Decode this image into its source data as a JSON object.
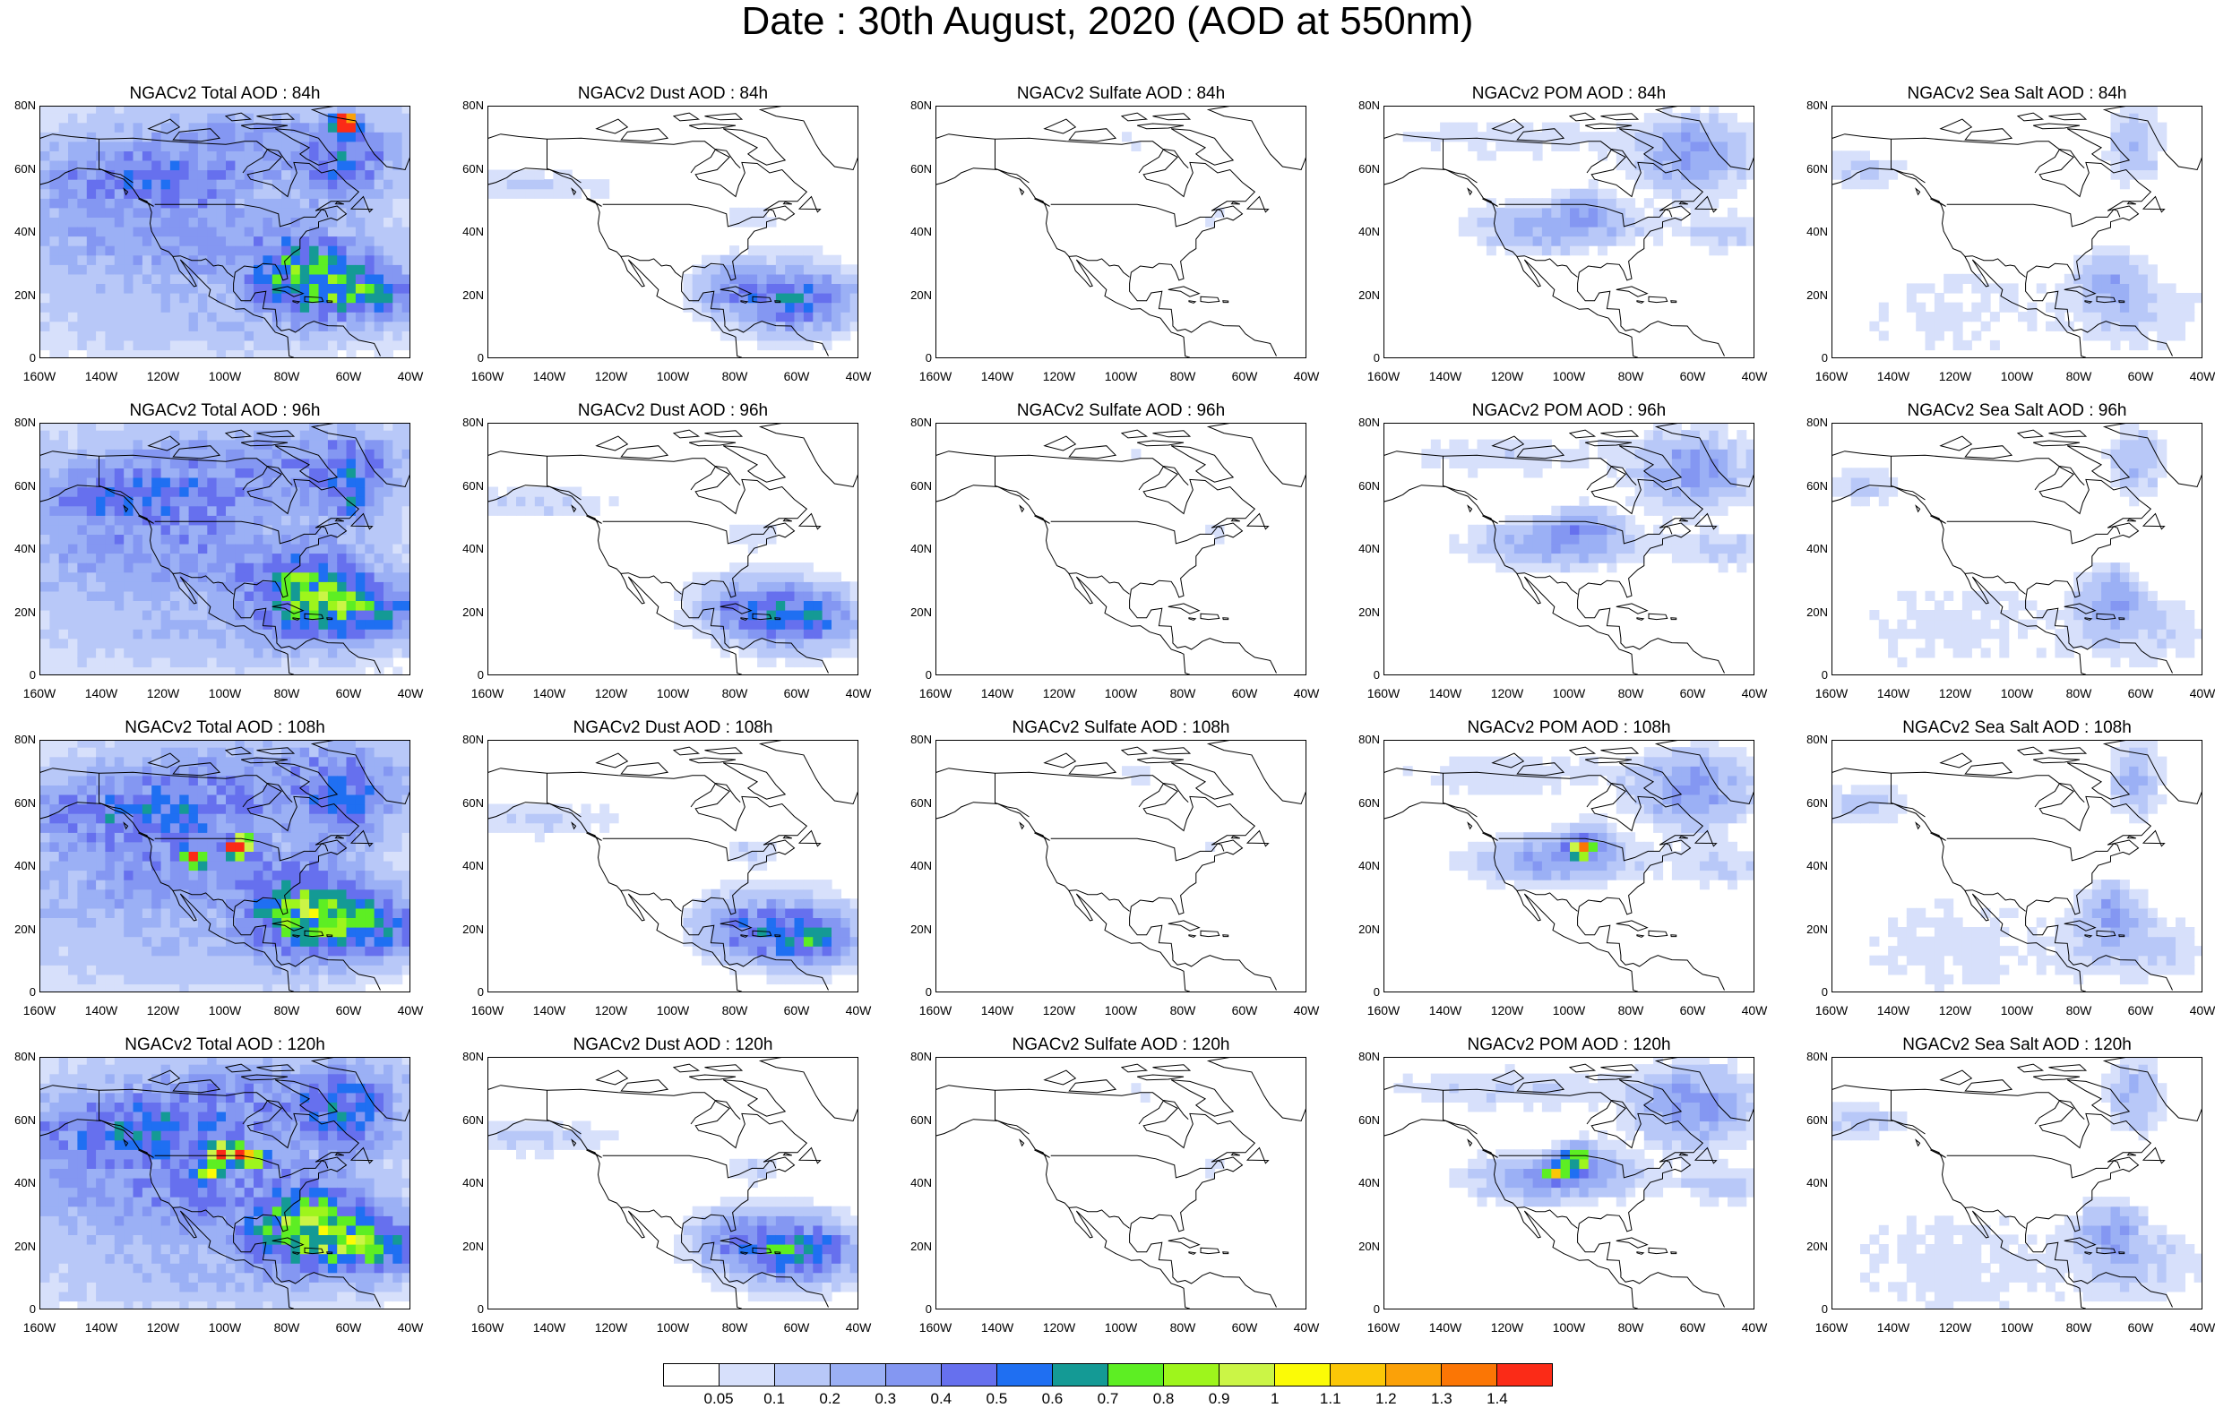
{
  "title": "Date : 30th August, 2020 (AOD at 550nm)",
  "panels": [
    [
      "NGACv2 Total AOD : 84h",
      "NGACv2 Dust AOD : 84h",
      "NGACv2 Sulfate AOD : 84h",
      "NGACv2 POM AOD : 84h",
      "NGACv2 Sea Salt AOD : 84h"
    ],
    [
      "NGACv2 Total AOD : 96h",
      "NGACv2 Dust AOD : 96h",
      "NGACv2 Sulfate AOD : 96h",
      "NGACv2 POM AOD : 96h",
      "NGACv2 Sea Salt AOD : 96h"
    ],
    [
      "NGACv2 Total AOD : 108h",
      "NGACv2 Dust AOD : 108h",
      "NGACv2 Sulfate AOD : 108h",
      "NGACv2 POM AOD : 108h",
      "NGACv2 Sea Salt AOD : 108h"
    ],
    [
      "NGACv2 Total AOD : 120h",
      "NGACv2 Dust AOD : 120h",
      "NGACv2 Sulfate AOD : 120h",
      "NGACv2 POM AOD : 120h",
      "NGACv2 Sea Salt  AOD : 120h"
    ]
  ],
  "lat_ticks": [
    "80N",
    "60N",
    "40N",
    "20N",
    "0"
  ],
  "lon_ticks": [
    "160W",
    "140W",
    "120W",
    "100W",
    "80W",
    "60W",
    "40W"
  ],
  "colorbar": {
    "labels": [
      "0.05",
      "0.1",
      "0.2",
      "0.3",
      "0.4",
      "0.5",
      "0.6",
      "0.7",
      "0.8",
      "0.9",
      "1",
      "1.1",
      "1.2",
      "1.3",
      "1.4"
    ],
    "colors": [
      "#ffffff",
      "#d7e0fb",
      "#b8c8f8",
      "#9bb0f5",
      "#8497f2",
      "#6670ee",
      "#1f6ff2",
      "#149a95",
      "#5dee23",
      "#9ef51c",
      "#cbf546",
      "#fbfb06",
      "#fbc707",
      "#fba108",
      "#fb7605",
      "#fb2b17"
    ]
  },
  "chart_data": {
    "type": "heatmap",
    "title": "Date : 30th August, 2020 (AOD at 550nm)",
    "variables": [
      "Total",
      "Dust",
      "Sulfate",
      "POM",
      "Sea Salt"
    ],
    "forecast_hours": [
      "84h",
      "96h",
      "108h",
      "120h"
    ],
    "lon_range": [
      -160,
      -40
    ],
    "lat_range": [
      0,
      80
    ],
    "levels": [
      0.05,
      0.1,
      0.2,
      0.3,
      0.4,
      0.5,
      0.6,
      0.7,
      0.8,
      0.9,
      1,
      1.1,
      1.2,
      1.3,
      1.4
    ]
  }
}
